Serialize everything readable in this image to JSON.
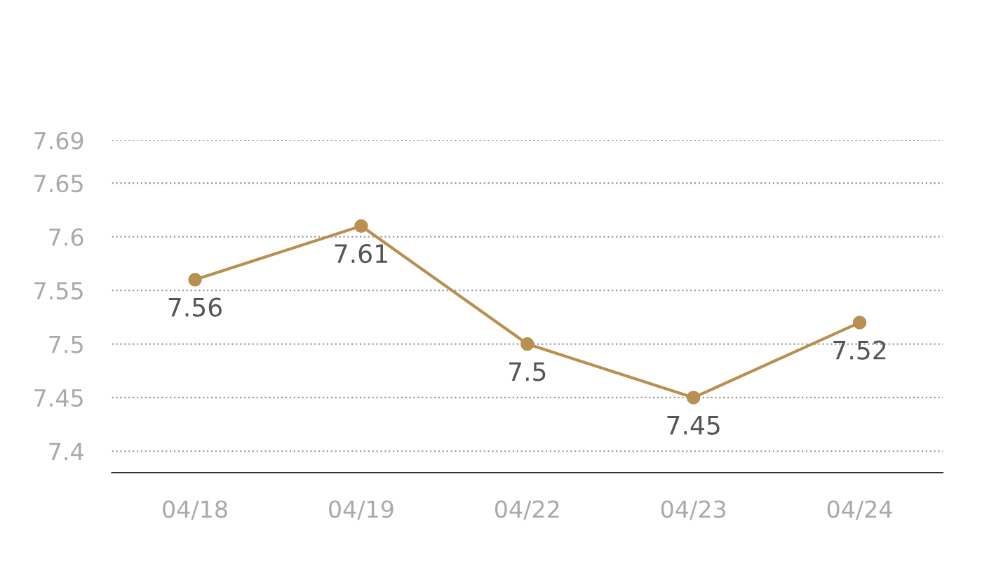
{
  "chart_data": {
    "type": "line",
    "categories": [
      "04/18",
      "04/19",
      "04/22",
      "04/23",
      "04/24"
    ],
    "series": [
      {
        "color": "#b8904f",
        "values": [
          7.56,
          7.61,
          7.5,
          7.45,
          7.52
        ]
      }
    ],
    "ylim": [
      7.38,
      7.69
    ],
    "yticks": [
      7.4,
      7.45,
      7.5,
      7.55,
      7.6,
      7.65,
      7.69
    ],
    "grid": "y",
    "marker": "circle",
    "line_style": "solid",
    "data_labels": true,
    "legend": false
  }
}
